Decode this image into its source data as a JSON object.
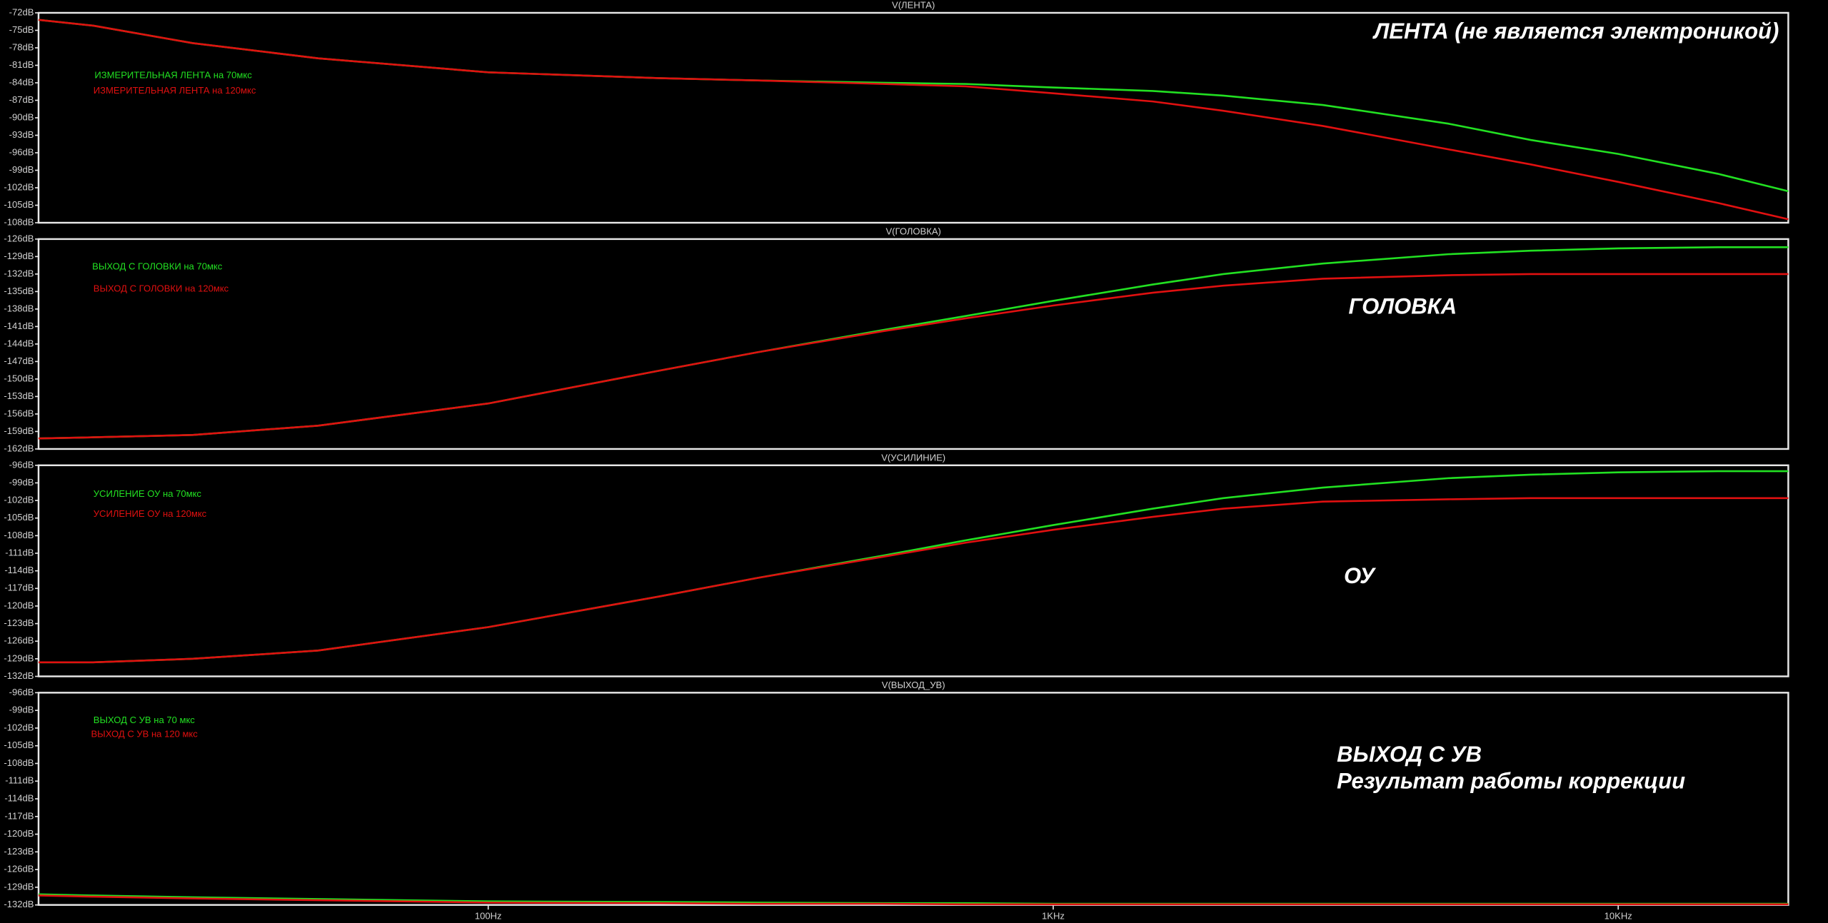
{
  "chart_data": [
    {
      "type": "line",
      "title": "V(ЛЕНТА)",
      "annotation": [
        "ЛЕНТА (не является электроникой)"
      ],
      "log_x": true,
      "xlim": [
        16,
        20000
      ],
      "ylim": [
        -108,
        -72
      ],
      "yticks": [
        {
          "value": -72,
          "label": "-72dB"
        },
        {
          "value": -75,
          "label": "-75dB"
        },
        {
          "value": -78,
          "label": "-78dB"
        },
        {
          "value": -81,
          "label": "-81dB"
        },
        {
          "value": -84,
          "label": "-84dB"
        },
        {
          "value": -87,
          "label": "-87dB"
        },
        {
          "value": -90,
          "label": "-90dB"
        },
        {
          "value": -93,
          "label": "-93dB"
        },
        {
          "value": -96,
          "label": "-96dB"
        },
        {
          "value": -99,
          "label": "-99dB"
        },
        {
          "value": -102,
          "label": "-102dB"
        },
        {
          "value": -105,
          "label": "-105dB"
        },
        {
          "value": -108,
          "label": "-108dB"
        }
      ],
      "x": [
        16,
        20,
        30,
        50,
        100,
        200,
        300,
        500,
        700,
        1000,
        1500,
        2000,
        3000,
        5000,
        7000,
        10000,
        15000,
        20000
      ],
      "series": [
        {
          "name": "ИЗМЕРИТЕЛЬНАЯ ЛЕНТА на 70мкс",
          "color": "#22e022",
          "values": [
            -73.2,
            -74.2,
            -77.2,
            -79.8,
            -82.2,
            -83.2,
            -83.6,
            -84,
            -84.2,
            -84.8,
            -85.4,
            -86.2,
            -87.8,
            -91,
            -93.8,
            -96.2,
            -99.6,
            -102.6
          ]
        },
        {
          "name": "ИЗМЕРИТЕЛЬНАЯ ЛЕНТА на 120мкс",
          "color": "#e01010",
          "values": [
            -73.2,
            -74.2,
            -77.2,
            -79.8,
            -82.2,
            -83.2,
            -83.6,
            -84.2,
            -84.6,
            -85.8,
            -87.2,
            -88.8,
            -91.4,
            -95.4,
            -98,
            -101,
            -104.6,
            -107.4
          ]
        }
      ]
    },
    {
      "type": "line",
      "title": "V(ГОЛОВКА)",
      "annotation": [
        "ГОЛОВКА"
      ],
      "log_x": true,
      "xlim": [
        16,
        20000
      ],
      "ylim": [
        -162,
        -126
      ],
      "yticks": [
        {
          "value": -126,
          "label": "-126dB"
        },
        {
          "value": -129,
          "label": "-129dB"
        },
        {
          "value": -132,
          "label": "-132dB"
        },
        {
          "value": -135,
          "label": "-135dB"
        },
        {
          "value": -138,
          "label": "-138dB"
        },
        {
          "value": -141,
          "label": "-141dB"
        },
        {
          "value": -144,
          "label": "-144dB"
        },
        {
          "value": -147,
          "label": "-147dB"
        },
        {
          "value": -150,
          "label": "-150dB"
        },
        {
          "value": -153,
          "label": "-153dB"
        },
        {
          "value": -156,
          "label": "-156dB"
        },
        {
          "value": -159,
          "label": "-159dB"
        },
        {
          "value": -162,
          "label": "-162dB"
        }
      ],
      "x": [
        16,
        20,
        30,
        50,
        100,
        200,
        300,
        500,
        700,
        1000,
        1500,
        2000,
        3000,
        5000,
        7000,
        10000,
        15000,
        20000
      ],
      "series": [
        {
          "name": "ВЫХОД С ГОЛОВКИ на 70мкс",
          "color": "#22e022",
          "values": [
            -160.2,
            -160,
            -159.6,
            -158,
            -154.2,
            -148.6,
            -145.4,
            -141.6,
            -139.2,
            -136.6,
            -133.8,
            -132,
            -130.2,
            -128.6,
            -128,
            -127.6,
            -127.4,
            -127.4
          ]
        },
        {
          "name": "ВЫХОД С ГОЛОВКИ на 120мкс",
          "color": "#e01010",
          "values": [
            -160.2,
            -160,
            -159.6,
            -158,
            -154.2,
            -148.6,
            -145.4,
            -141.8,
            -139.6,
            -137.4,
            -135.2,
            -134,
            -132.8,
            -132.2,
            -132,
            -132,
            -132,
            -132
          ]
        }
      ]
    },
    {
      "type": "line",
      "title": "V(УСИЛИНИЕ)",
      "annotation": [
        "ОУ"
      ],
      "log_x": true,
      "xlim": [
        16,
        20000
      ],
      "ylim": [
        -132,
        -96
      ],
      "yticks": [
        {
          "value": -96,
          "label": "-96dB"
        },
        {
          "value": -99,
          "label": "-99dB"
        },
        {
          "value": -102,
          "label": "-102dB"
        },
        {
          "value": -105,
          "label": "-105dB"
        },
        {
          "value": -108,
          "label": "-108dB"
        },
        {
          "value": -111,
          "label": "-111dB"
        },
        {
          "value": -114,
          "label": "-114dB"
        },
        {
          "value": -117,
          "label": "-117dB"
        },
        {
          "value": -120,
          "label": "-120dB"
        },
        {
          "value": -123,
          "label": "-123dB"
        },
        {
          "value": -126,
          "label": "-126dB"
        },
        {
          "value": -129,
          "label": "-129dB"
        },
        {
          "value": -132,
          "label": "-132dB"
        }
      ],
      "x": [
        16,
        20,
        30,
        50,
        100,
        200,
        300,
        500,
        700,
        1000,
        1500,
        2000,
        3000,
        5000,
        7000,
        10000,
        15000,
        20000
      ],
      "series": [
        {
          "name": "УСИЛЕНИЕ ОУ на 70мкс",
          "color": "#22e022",
          "values": [
            -129.6,
            -129.6,
            -129,
            -127.6,
            -123.6,
            -118.4,
            -115.2,
            -111.4,
            -108.8,
            -106.2,
            -103.4,
            -101.6,
            -99.8,
            -98.2,
            -97.6,
            -97.2,
            -97,
            -97
          ]
        },
        {
          "name": "УСИЛЕНИЕ ОУ на 120мкс",
          "color": "#e01010",
          "values": [
            -129.6,
            -129.6,
            -129,
            -127.6,
            -123.6,
            -118.4,
            -115.2,
            -111.6,
            -109.2,
            -107,
            -104.8,
            -103.4,
            -102.2,
            -101.8,
            -101.6,
            -101.6,
            -101.6,
            -101.6
          ]
        }
      ]
    },
    {
      "type": "line",
      "title": "V(ВЫХОД_УВ)",
      "annotation": [
        "ВЫХОД С УВ",
        "Результат работы коррекции"
      ],
      "log_x": true,
      "xlim": [
        16,
        20000
      ],
      "ylim": [
        -132,
        -96
      ],
      "xticks": [
        {
          "value": 100,
          "label": "100Hz"
        },
        {
          "value": 1000,
          "label": "1KHz"
        },
        {
          "value": 10000,
          "label": "10KHz"
        }
      ],
      "yticks": [
        {
          "value": -96,
          "label": "-96dB"
        },
        {
          "value": -99,
          "label": "-99dB"
        },
        {
          "value": -102,
          "label": "-102dB"
        },
        {
          "value": -105,
          "label": "-105dB"
        },
        {
          "value": -108,
          "label": "-108dB"
        },
        {
          "value": -111,
          "label": "-111dB"
        },
        {
          "value": -114,
          "label": "-114dB"
        },
        {
          "value": -117,
          "label": "-117dB"
        },
        {
          "value": -120,
          "label": "-120dB"
        },
        {
          "value": -123,
          "label": "-123dB"
        },
        {
          "value": -126,
          "label": "-126dB"
        },
        {
          "value": -129,
          "label": "-129dB"
        },
        {
          "value": -132,
          "label": "-132dB"
        }
      ],
      "x": [
        16,
        20,
        30,
        50,
        100,
        200,
        300,
        500,
        700,
        1000,
        1500,
        2000,
        3000,
        5000,
        7000,
        10000,
        15000,
        20000
      ],
      "series": [
        {
          "name": "ВЫХОД С УВ на 70 мкс",
          "color": "#22e022",
          "values": [
            -130.2,
            -130.4,
            -130.7,
            -131,
            -131.4,
            -131.5,
            -131.6,
            -131.7,
            -131.7,
            -131.8,
            -131.8,
            -131.8,
            -131.8,
            -131.8,
            -131.8,
            -131.8,
            -131.8,
            -131.8
          ]
        },
        {
          "name": "ВЫХОД С УВ на 120 мкс",
          "color": "#e01010",
          "values": [
            -130.4,
            -130.6,
            -130.9,
            -131.2,
            -131.6,
            -131.7,
            -131.8,
            -131.8,
            -131.9,
            -131.9,
            -131.9,
            -131.9,
            -131.9,
            -131.9,
            -131.9,
            -131.9,
            -131.9,
            -131.9
          ]
        }
      ]
    }
  ]
}
